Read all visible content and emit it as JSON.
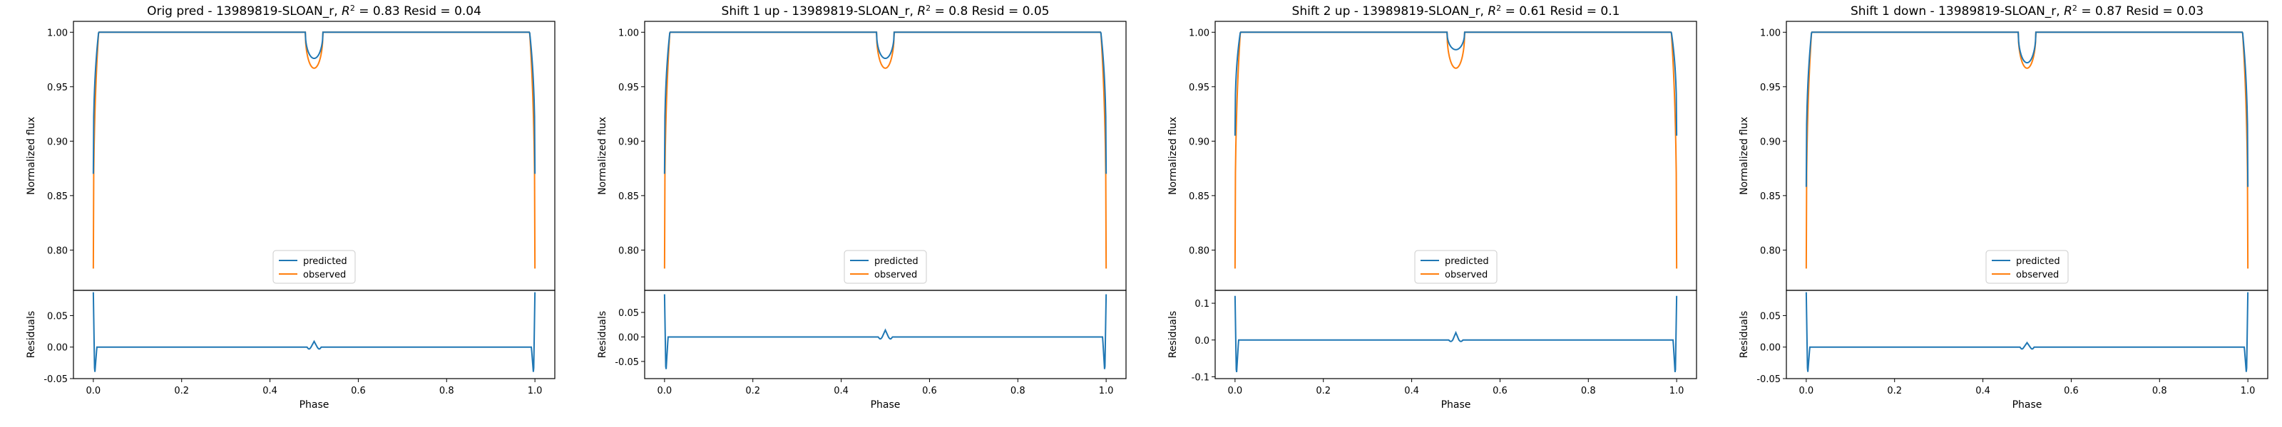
{
  "colors": {
    "predicted": "#1f77b4",
    "observed": "#ff7f0e",
    "axes": "#000000",
    "legend_border": "#cccccc"
  },
  "chart_data": [
    {
      "type": "line",
      "title": "Orig pred - 13989819-SLOAN_r, $R^2 = 0.83$ Resid = 0.04",
      "title_parts": {
        "prefix": "Orig pred - 13989819-SLOAN_r, ",
        "r2_symbol": "R",
        "r2_exp": "2",
        "r2_rest": " = 0.83 Resid = 0.04"
      },
      "xlabel": "Phase",
      "ylabel_top": "Normalized flux",
      "ylabel_bottom": "Residuals",
      "xlim": [
        -0.045,
        1.045
      ],
      "ylim_top": [
        0.763,
        1.01
      ],
      "ylim_bottom": [
        -0.05,
        0.09
      ],
      "xticks": [
        "0.0",
        "0.2",
        "0.4",
        "0.6",
        "0.8",
        "1.0"
      ],
      "xtick_values": [
        0,
        0.2,
        0.4,
        0.6,
        0.8,
        1.0
      ],
      "yticks_top": [
        "0.80",
        "0.85",
        "0.90",
        "0.95",
        "1.00"
      ],
      "ytick_values_top": [
        0.8,
        0.85,
        0.9,
        0.95,
        1.0
      ],
      "yticks_bottom": [
        "-0.05",
        "0.00",
        "0.05"
      ],
      "ytick_values_bottom": [
        -0.05,
        0.0,
        0.05
      ],
      "legend": [
        "predicted",
        "observed"
      ],
      "predicted": {
        "edge": 0.87,
        "dip": 0.976
      },
      "observed": {
        "edge": 0.783,
        "dip": 0.967
      },
      "residual": {
        "edge_spike": 0.087,
        "edge_trough": -0.045,
        "mid_peak": 0.009,
        "mid_trough": -0.003
      }
    },
    {
      "type": "line",
      "title": "Shift 1 up - 13989819-SLOAN_r, $R^2 = 0.8$ Resid = 0.05",
      "title_parts": {
        "prefix": "Shift 1 up - 13989819-SLOAN_r, ",
        "r2_symbol": "R",
        "r2_exp": "2",
        "r2_rest": " = 0.8 Resid = 0.05"
      },
      "xlabel": "Phase",
      "ylabel_top": "Normalized flux",
      "ylabel_bottom": "Residuals",
      "xlim": [
        -0.045,
        1.045
      ],
      "ylim_top": [
        0.763,
        1.01
      ],
      "ylim_bottom": [
        -0.085,
        0.095
      ],
      "xticks": [
        "0.0",
        "0.2",
        "0.4",
        "0.6",
        "0.8",
        "1.0"
      ],
      "xtick_values": [
        0,
        0.2,
        0.4,
        0.6,
        0.8,
        1.0
      ],
      "yticks_top": [
        "0.80",
        "0.85",
        "0.90",
        "0.95",
        "1.00"
      ],
      "ytick_values_top": [
        0.8,
        0.85,
        0.9,
        0.95,
        1.0
      ],
      "yticks_bottom": [
        "-0.05",
        "0.00",
        "0.05"
      ],
      "ytick_values_bottom": [
        -0.05,
        0.0,
        0.05
      ],
      "legend": [
        "predicted",
        "observed"
      ],
      "predicted": {
        "edge": 0.87,
        "dip": 0.976
      },
      "observed": {
        "edge": 0.783,
        "dip": 0.967
      },
      "residual": {
        "edge_spike": 0.087,
        "edge_trough": -0.075,
        "mid_peak": 0.014,
        "mid_trough": -0.004
      }
    },
    {
      "type": "line",
      "title": "Shift 2 up - 13989819-SLOAN_r, $R^2 = 0.61$ Resid = 0.1",
      "title_parts": {
        "prefix": "Shift 2 up - 13989819-SLOAN_r, ",
        "r2_symbol": "R",
        "r2_exp": "2",
        "r2_rest": " = 0.61 Resid = 0.1"
      },
      "xlabel": "Phase",
      "ylabel_top": "Normalized flux",
      "ylabel_bottom": "Residuals",
      "xlim": [
        -0.045,
        1.045
      ],
      "ylim_top": [
        0.763,
        1.01
      ],
      "ylim_bottom": [
        -0.105,
        0.135
      ],
      "xticks": [
        "0.0",
        "0.2",
        "0.4",
        "0.6",
        "0.8",
        "1.0"
      ],
      "xtick_values": [
        0,
        0.2,
        0.4,
        0.6,
        0.8,
        1.0
      ],
      "yticks_top": [
        "0.80",
        "0.85",
        "0.90",
        "0.95",
        "1.00"
      ],
      "ytick_values_top": [
        0.8,
        0.85,
        0.9,
        0.95,
        1.0
      ],
      "yticks_bottom": [
        "-0.1",
        "0.0",
        "0.1"
      ],
      "ytick_values_bottom": [
        -0.1,
        0.0,
        0.1
      ],
      "legend": [
        "predicted",
        "observed"
      ],
      "predicted": {
        "edge": 0.905,
        "dip": 0.984
      },
      "observed": {
        "edge": 0.783,
        "dip": 0.967
      },
      "residual": {
        "edge_spike": 0.12,
        "edge_trough": -0.1,
        "mid_peak": 0.02,
        "mid_trough": -0.004
      }
    },
    {
      "type": "line",
      "title": "Shift 1 down - 13989819-SLOAN_r, $R^2 = 0.87$ Resid = 0.03",
      "title_parts": {
        "prefix": "Shift 1 down - 13989819-SLOAN_r, ",
        "r2_symbol": "R",
        "r2_exp": "2",
        "r2_rest": " = 0.87 Resid = 0.03"
      },
      "xlabel": "Phase",
      "ylabel_top": "Normalized flux",
      "ylabel_bottom": "Residuals",
      "xlim": [
        -0.045,
        1.045
      ],
      "ylim_top": [
        0.763,
        1.01
      ],
      "ylim_bottom": [
        -0.05,
        0.09
      ],
      "xticks": [
        "0.0",
        "0.2",
        "0.4",
        "0.6",
        "0.8",
        "1.0"
      ],
      "xtick_values": [
        0,
        0.2,
        0.4,
        0.6,
        0.8,
        1.0
      ],
      "yticks_top": [
        "0.80",
        "0.85",
        "0.90",
        "0.95",
        "1.00"
      ],
      "ytick_values_top": [
        0.8,
        0.85,
        0.9,
        0.95,
        1.0
      ],
      "yticks_bottom": [
        "-0.05",
        "0.00",
        "0.05"
      ],
      "ytick_values_bottom": [
        -0.05,
        0.0,
        0.05
      ],
      "legend": [
        "predicted",
        "observed"
      ],
      "predicted": {
        "edge": 0.858,
        "dip": 0.972
      },
      "observed": {
        "edge": 0.783,
        "dip": 0.967
      },
      "residual": {
        "edge_spike": 0.087,
        "edge_trough": -0.045,
        "mid_peak": 0.007,
        "mid_trough": -0.003
      }
    }
  ]
}
